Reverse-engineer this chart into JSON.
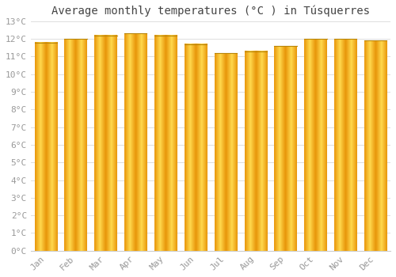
{
  "title": "Average monthly temperatures (°C ) in Túsquerres",
  "months": [
    "Jan",
    "Feb",
    "Mar",
    "Apr",
    "May",
    "Jun",
    "Jul",
    "Aug",
    "Sep",
    "Oct",
    "Nov",
    "Dec"
  ],
  "values": [
    11.8,
    12.0,
    12.2,
    12.3,
    12.2,
    11.7,
    11.2,
    11.3,
    11.6,
    12.0,
    12.0,
    11.9
  ],
  "bar_color_center": "#FFD84D",
  "bar_color_edge": "#E8960A",
  "bar_top_line_color": "#B8860B",
  "background_color": "#FFFFFF",
  "plot_bg_color": "#FFFFFF",
  "grid_color": "#DDDDDD",
  "ylim": [
    0,
    13
  ],
  "ytick_step": 1,
  "title_fontsize": 10,
  "tick_fontsize": 8,
  "tick_color": "#999999",
  "font_family": "monospace"
}
